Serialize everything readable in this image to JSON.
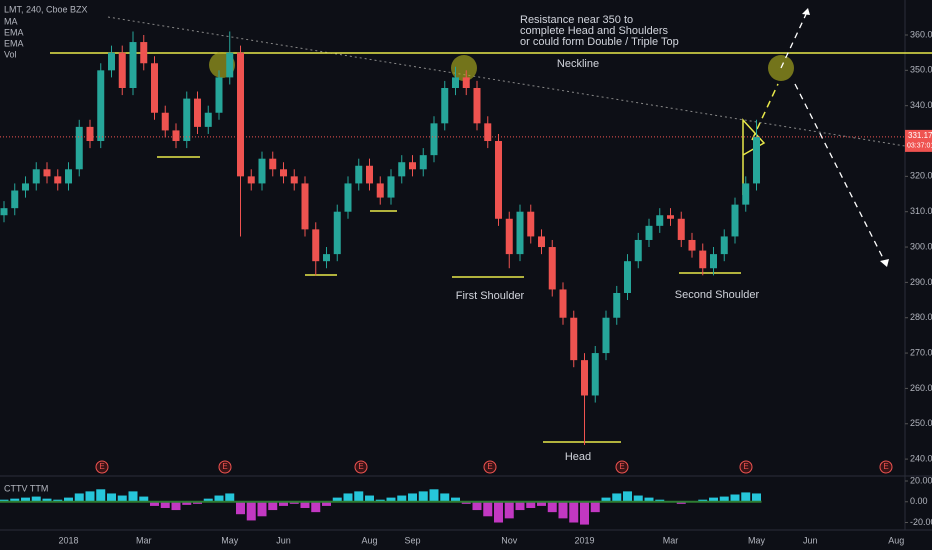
{
  "chart_data": {
    "type": "candlestick",
    "header": [
      "LMT, 240, Cboe BZX",
      "MA",
      "EMA",
      "EMA",
      "Vol"
    ],
    "annotations": [
      "Resistance near 350 to",
      "complete Head and Shoulders",
      "or could form Double / Triple Top",
      "Neckline",
      "First Shoulder",
      "Second Shoulder",
      "Head"
    ],
    "events": [
      "E",
      "E",
      "E",
      "E",
      "E",
      "E",
      "E"
    ],
    "last_price_label": "331.17",
    "countdown": "03:37:01",
    "up_color": "#26a69a",
    "down_color": "#ef5350",
    "categories": [
      null,
      null,
      null,
      null,
      null,
      null,
      "2018",
      null,
      null,
      null,
      null,
      null,
      null,
      "Mar",
      null,
      null,
      null,
      null,
      null,
      null,
      null,
      "May",
      null,
      null,
      null,
      null,
      "Jun",
      null,
      null,
      null,
      null,
      null,
      null,
      null,
      "Aug",
      null,
      null,
      null,
      "Sep",
      null,
      null,
      null,
      null,
      null,
      null,
      null,
      null,
      "Nov",
      null,
      null,
      null,
      null,
      null,
      null,
      "2019",
      null,
      null,
      null,
      null,
      null,
      null,
      null,
      "Mar",
      null,
      null,
      null,
      null,
      null,
      null,
      null,
      "May",
      null,
      null,
      null,
      null,
      "Jun",
      null,
      null,
      null,
      null,
      null,
      null,
      null,
      "Aug"
    ],
    "open": [
      309,
      311,
      316,
      318,
      322,
      320,
      318,
      322,
      334,
      330,
      350,
      355,
      345,
      358,
      352,
      338,
      333,
      330,
      342,
      334,
      338,
      348,
      355,
      320,
      318,
      325,
      322,
      320,
      318,
      305,
      296,
      298,
      310,
      318,
      323,
      318,
      314,
      320,
      324,
      322,
      326,
      335,
      345,
      348,
      345,
      335,
      330,
      308,
      298,
      310,
      303,
      300,
      288,
      280,
      268,
      258,
      270,
      280,
      287,
      296,
      302,
      306,
      309,
      308,
      302,
      299,
      294,
      298,
      303,
      312,
      318,
      null,
      null,
      null,
      null,
      null,
      null,
      null,
      null,
      null,
      null,
      null,
      null,
      null
    ],
    "high": [
      313,
      318,
      320,
      324,
      324,
      322,
      324,
      336,
      336,
      352,
      357,
      357,
      361,
      360,
      354,
      340,
      335,
      344,
      344,
      340,
      350,
      361,
      357,
      322,
      327,
      327,
      324,
      322,
      320,
      307,
      300,
      312,
      320,
      325,
      325,
      320,
      322,
      326,
      326,
      328,
      337,
      347,
      351,
      350,
      347,
      337,
      332,
      310,
      312,
      312,
      305,
      302,
      290,
      282,
      270,
      272,
      282,
      289,
      298,
      304,
      308,
      311,
      311,
      310,
      304,
      301,
      300,
      305,
      314,
      320,
      336,
      null,
      null,
      null,
      null,
      null,
      null,
      null,
      null,
      null,
      null,
      null,
      null,
      null
    ],
    "low": [
      307,
      309,
      314,
      316,
      318,
      316,
      316,
      320,
      328,
      328,
      348,
      343,
      343,
      350,
      336,
      331,
      328,
      328,
      332,
      332,
      336,
      346,
      303,
      316,
      316,
      320,
      318,
      316,
      303,
      292,
      294,
      296,
      308,
      316,
      316,
      312,
      312,
      318,
      320,
      320,
      324,
      333,
      343,
      343,
      333,
      328,
      306,
      294,
      296,
      301,
      298,
      286,
      278,
      266,
      244,
      256,
      268,
      278,
      285,
      294,
      300,
      304,
      306,
      300,
      297,
      292,
      292,
      296,
      301,
      310,
      316,
      null,
      null,
      null,
      null,
      null,
      null,
      null,
      null,
      null,
      null,
      null,
      null,
      null
    ],
    "close": [
      311,
      316,
      318,
      322,
      320,
      318,
      322,
      334,
      330,
      350,
      355,
      345,
      358,
      352,
      338,
      333,
      330,
      342,
      334,
      338,
      348,
      355,
      320,
      318,
      325,
      322,
      320,
      318,
      305,
      296,
      298,
      310,
      318,
      323,
      318,
      314,
      320,
      324,
      322,
      326,
      335,
      345,
      348,
      345,
      335,
      330,
      308,
      298,
      310,
      303,
      300,
      288,
      280,
      268,
      258,
      270,
      280,
      287,
      296,
      302,
      306,
      309,
      308,
      302,
      299,
      294,
      298,
      303,
      312,
      318,
      331.17,
      null,
      null,
      null,
      null,
      null,
      null,
      null,
      null,
      null,
      null,
      null,
      null,
      null
    ],
    "ylim": [
      235.5,
      369.9
    ],
    "yticks": [
      {
        "value": 240,
        "label": "240.00"
      },
      {
        "value": 250,
        "label": "250.00"
      },
      {
        "value": 260,
        "label": "260.00"
      },
      {
        "value": 270,
        "label": "270.00"
      },
      {
        "value": 280,
        "label": "280.00"
      },
      {
        "value": 290,
        "label": "290.00"
      },
      {
        "value": 300,
        "label": "300.00"
      },
      {
        "value": 310,
        "label": "310.00"
      },
      {
        "value": 320,
        "label": "320.00"
      },
      {
        "value": 330,
        "label": "330.00"
      },
      {
        "value": 340,
        "label": "340.00"
      },
      {
        "value": 350,
        "label": "350.00"
      },
      {
        "value": 360,
        "label": "360.00"
      }
    ],
    "indicator": {
      "name": "CTTV TTM",
      "pos_color": "#26c6da",
      "neg_color": "#c238c2",
      "values": [
        2,
        3,
        4,
        5,
        3,
        2,
        4,
        8,
        10,
        12,
        8,
        6,
        10,
        5,
        -4,
        -6,
        -8,
        -3,
        -2,
        3,
        6,
        8,
        -12,
        -18,
        -14,
        -8,
        -4,
        -2,
        -6,
        -10,
        -4,
        4,
        8,
        10,
        6,
        2,
        4,
        6,
        8,
        10,
        12,
        8,
        4,
        -2,
        -8,
        -14,
        -20,
        -16,
        -8,
        -6,
        -4,
        -10,
        -16,
        -20,
        -22,
        -10,
        4,
        8,
        10,
        6,
        4,
        2,
        0,
        -2,
        0,
        2,
        4,
        5,
        7,
        9,
        8,
        null,
        null,
        null,
        null,
        null,
        null,
        null,
        null,
        null,
        null,
        null,
        null,
        null
      ],
      "ylim": [
        -33,
        22.9
      ],
      "yticks": [
        {
          "value": 20,
          "label": "20.00"
        },
        {
          "value": 0,
          "label": "0.00"
        },
        {
          "value": -20,
          "label": "-20.00"
        }
      ]
    }
  }
}
